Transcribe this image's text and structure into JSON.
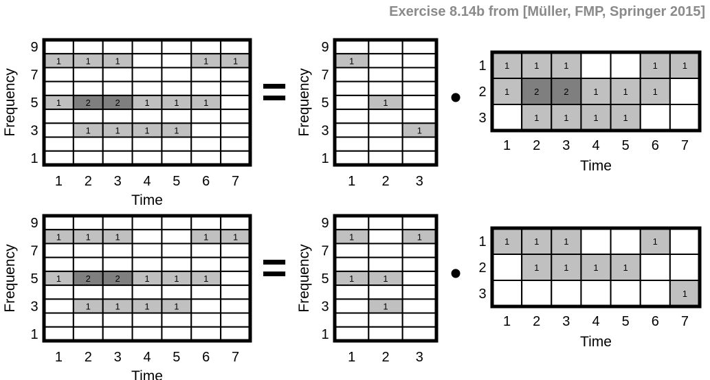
{
  "caption": "Exercise 8.14b from [Müller, FMP, Springer 2015]",
  "colors": {
    "white": "#ffffff",
    "one": "#c0c0c0",
    "two": "#7f7f7f",
    "border": "#000000",
    "grid": "#000000"
  },
  "labels": {
    "time": "Time",
    "frequency": "Frequency"
  },
  "symbols": {
    "equals": "=",
    "dot": "•"
  },
  "rows": [
    {
      "V": {
        "row_labels": [
          "9",
          "",
          "7",
          "",
          "5",
          "",
          "3",
          "",
          "1"
        ],
        "col_labels": [
          "1",
          "2",
          "3",
          "4",
          "5",
          "6",
          "7"
        ],
        "values": [
          [
            0,
            0,
            0,
            0,
            0,
            0,
            0
          ],
          [
            1,
            1,
            1,
            0,
            0,
            1,
            1
          ],
          [
            0,
            0,
            0,
            0,
            0,
            0,
            0
          ],
          [
            0,
            0,
            0,
            0,
            0,
            0,
            0
          ],
          [
            1,
            2,
            2,
            1,
            1,
            1,
            0
          ],
          [
            0,
            0,
            0,
            0,
            0,
            0,
            0
          ],
          [
            0,
            1,
            1,
            1,
            1,
            0,
            0
          ],
          [
            0,
            0,
            0,
            0,
            0,
            0,
            0
          ],
          [
            0,
            0,
            0,
            0,
            0,
            0,
            0
          ]
        ]
      },
      "W": {
        "row_labels": [
          "9",
          "",
          "7",
          "",
          "5",
          "",
          "3",
          "",
          "1"
        ],
        "col_labels": [
          "1",
          "2",
          "3"
        ],
        "values": [
          [
            0,
            0,
            0
          ],
          [
            1,
            0,
            0
          ],
          [
            0,
            0,
            0
          ],
          [
            0,
            0,
            0
          ],
          [
            0,
            1,
            0
          ],
          [
            0,
            0,
            0
          ],
          [
            0,
            0,
            1
          ],
          [
            0,
            0,
            0
          ],
          [
            0,
            0,
            0
          ]
        ]
      },
      "H": {
        "row_labels": [
          "1",
          "2",
          "3"
        ],
        "col_labels": [
          "1",
          "2",
          "3",
          "4",
          "5",
          "6",
          "7"
        ],
        "values": [
          [
            1,
            1,
            1,
            0,
            0,
            1,
            1
          ],
          [
            1,
            2,
            2,
            1,
            1,
            1,
            0
          ],
          [
            0,
            1,
            1,
            1,
            1,
            0,
            0
          ]
        ]
      }
    },
    {
      "V": {
        "row_labels": [
          "9",
          "",
          "7",
          "",
          "5",
          "",
          "3",
          "",
          "1"
        ],
        "col_labels": [
          "1",
          "2",
          "3",
          "4",
          "5",
          "6",
          "7"
        ],
        "values": [
          [
            0,
            0,
            0,
            0,
            0,
            0,
            0
          ],
          [
            1,
            1,
            1,
            0,
            0,
            1,
            1
          ],
          [
            0,
            0,
            0,
            0,
            0,
            0,
            0
          ],
          [
            0,
            0,
            0,
            0,
            0,
            0,
            0
          ],
          [
            1,
            2,
            2,
            1,
            1,
            1,
            0
          ],
          [
            0,
            0,
            0,
            0,
            0,
            0,
            0
          ],
          [
            0,
            1,
            1,
            1,
            1,
            0,
            0
          ],
          [
            0,
            0,
            0,
            0,
            0,
            0,
            0
          ],
          [
            0,
            0,
            0,
            0,
            0,
            0,
            0
          ]
        ]
      },
      "W": {
        "row_labels": [
          "9",
          "",
          "7",
          "",
          "5",
          "",
          "3",
          "",
          "1"
        ],
        "col_labels": [
          "1",
          "2",
          "3"
        ],
        "values": [
          [
            0,
            0,
            0
          ],
          [
            1,
            0,
            1
          ],
          [
            0,
            0,
            0
          ],
          [
            0,
            0,
            0
          ],
          [
            1,
            1,
            0
          ],
          [
            0,
            0,
            0
          ],
          [
            0,
            1,
            0
          ],
          [
            0,
            0,
            0
          ],
          [
            0,
            0,
            0
          ]
        ]
      },
      "H": {
        "row_labels": [
          "1",
          "2",
          "3"
        ],
        "col_labels": [
          "1",
          "2",
          "3",
          "4",
          "5",
          "6",
          "7"
        ],
        "values": [
          [
            1,
            1,
            1,
            0,
            0,
            1,
            0
          ],
          [
            0,
            1,
            1,
            1,
            1,
            0,
            0
          ],
          [
            0,
            0,
            0,
            0,
            0,
            0,
            1
          ]
        ]
      }
    }
  ]
}
